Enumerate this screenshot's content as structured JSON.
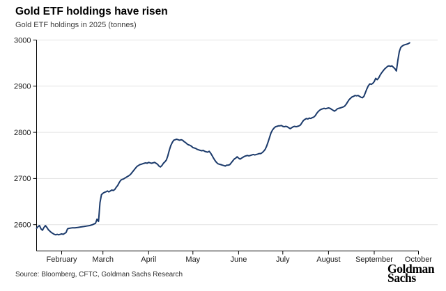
{
  "header": {
    "title": "Gold ETF holdings have risen",
    "subtitle": "Gold ETF holdings in 2025 (tonnes)"
  },
  "footer": {
    "source": "Source: Bloomberg, CFTC, Goldman Sachs Research",
    "logo_line1": "Goldman",
    "logo_line2": "Sachs"
  },
  "chart_data": {
    "type": "line",
    "title": "Gold ETF holdings have risen",
    "subtitle": "Gold ETF holdings in 2025 (tonnes)",
    "series_name": "Gold ETF holdings (tonnes)",
    "x_unit": "days since 2025-01-15",
    "x_days_total": 259,
    "x_axis_months": [
      {
        "label": "February",
        "day": 17
      },
      {
        "label": "March",
        "day": 45
      },
      {
        "label": "April",
        "day": 76
      },
      {
        "label": "May",
        "day": 106
      },
      {
        "label": "June",
        "day": 137
      },
      {
        "label": "July",
        "day": 167
      },
      {
        "label": "August",
        "day": 198
      },
      {
        "label": "September",
        "day": 229
      },
      {
        "label": "October",
        "day": 259
      }
    ],
    "y_ticks": [
      2600,
      2700,
      2800,
      2900,
      3000
    ],
    "y_axis_range": [
      2543,
      3000
    ],
    "grid": "horizontal",
    "legend": "none",
    "line_color": "#1b3a6b",
    "grid_color": "#e3e3e3",
    "axis_color": "#000000",
    "label_color": "#1a1a1a",
    "points": [
      [
        0,
        2592
      ],
      [
        1,
        2596
      ],
      [
        2,
        2598
      ],
      [
        3,
        2591
      ],
      [
        4,
        2588
      ],
      [
        5,
        2594
      ],
      [
        6,
        2598
      ],
      [
        7,
        2594
      ],
      [
        8,
        2589
      ],
      [
        9,
        2586
      ],
      [
        10,
        2583
      ],
      [
        11,
        2581
      ],
      [
        12,
        2579
      ],
      [
        13,
        2578
      ],
      [
        14,
        2579
      ],
      [
        15,
        2578
      ],
      [
        16,
        2579
      ],
      [
        17,
        2580
      ],
      [
        18,
        2579
      ],
      [
        19,
        2581
      ],
      [
        20,
        2583
      ],
      [
        21,
        2591
      ],
      [
        22,
        2592
      ],
      [
        24,
        2593
      ],
      [
        26,
        2593
      ],
      [
        28,
        2594
      ],
      [
        30,
        2595
      ],
      [
        32,
        2596
      ],
      [
        34,
        2597
      ],
      [
        36,
        2598
      ],
      [
        38,
        2600
      ],
      [
        40,
        2603
      ],
      [
        41,
        2612
      ],
      [
        42,
        2607
      ],
      [
        43,
        2648
      ],
      [
        44,
        2665
      ],
      [
        45,
        2668
      ],
      [
        46,
        2670
      ],
      [
        47,
        2671
      ],
      [
        48,
        2673
      ],
      [
        49,
        2671
      ],
      [
        50,
        2673
      ],
      [
        51,
        2675
      ],
      [
        52,
        2674
      ],
      [
        53,
        2676
      ],
      [
        54,
        2681
      ],
      [
        55,
        2685
      ],
      [
        56,
        2691
      ],
      [
        57,
        2696
      ],
      [
        58,
        2698
      ],
      [
        59,
        2699
      ],
      [
        60,
        2701
      ],
      [
        61,
        2703
      ],
      [
        62,
        2705
      ],
      [
        63,
        2707
      ],
      [
        64,
        2710
      ],
      [
        65,
        2714
      ],
      [
        66,
        2718
      ],
      [
        67,
        2722
      ],
      [
        68,
        2726
      ],
      [
        69,
        2728
      ],
      [
        70,
        2730
      ],
      [
        71,
        2731
      ],
      [
        72,
        2732
      ],
      [
        73,
        2733
      ],
      [
        74,
        2734
      ],
      [
        75,
        2733
      ],
      [
        76,
        2735
      ],
      [
        77,
        2734
      ],
      [
        78,
        2733
      ],
      [
        79,
        2734
      ],
      [
        80,
        2735
      ],
      [
        81,
        2733
      ],
      [
        82,
        2731
      ],
      [
        83,
        2727
      ],
      [
        84,
        2725
      ],
      [
        85,
        2728
      ],
      [
        86,
        2733
      ],
      [
        87,
        2736
      ],
      [
        88,
        2740
      ],
      [
        89,
        2749
      ],
      [
        90,
        2761
      ],
      [
        91,
        2771
      ],
      [
        92,
        2778
      ],
      [
        93,
        2783
      ],
      [
        94,
        2784
      ],
      [
        95,
        2785
      ],
      [
        96,
        2784
      ],
      [
        97,
        2783
      ],
      [
        98,
        2784
      ],
      [
        99,
        2783
      ],
      [
        100,
        2780
      ],
      [
        101,
        2778
      ],
      [
        102,
        2775
      ],
      [
        103,
        2773
      ],
      [
        104,
        2772
      ],
      [
        105,
        2770
      ],
      [
        106,
        2767
      ],
      [
        107,
        2766
      ],
      [
        108,
        2765
      ],
      [
        109,
        2763
      ],
      [
        110,
        2762
      ],
      [
        111,
        2761
      ],
      [
        112,
        2760
      ],
      [
        113,
        2761
      ],
      [
        114,
        2759
      ],
      [
        115,
        2758
      ],
      [
        116,
        2757
      ],
      [
        117,
        2759
      ],
      [
        118,
        2755
      ],
      [
        119,
        2750
      ],
      [
        120,
        2744
      ],
      [
        121,
        2739
      ],
      [
        122,
        2735
      ],
      [
        123,
        2732
      ],
      [
        124,
        2731
      ],
      [
        125,
        2730
      ],
      [
        126,
        2729
      ],
      [
        127,
        2728
      ],
      [
        128,
        2727
      ],
      [
        129,
        2729
      ],
      [
        130,
        2729
      ],
      [
        131,
        2730
      ],
      [
        132,
        2734
      ],
      [
        133,
        2738
      ],
      [
        134,
        2742
      ],
      [
        135,
        2744
      ],
      [
        136,
        2747
      ],
      [
        137,
        2744
      ],
      [
        138,
        2742
      ],
      [
        139,
        2744
      ],
      [
        140,
        2746
      ],
      [
        141,
        2748
      ],
      [
        142,
        2749
      ],
      [
        143,
        2750
      ],
      [
        144,
        2749
      ],
      [
        145,
        2750
      ],
      [
        146,
        2751
      ],
      [
        147,
        2752
      ],
      [
        148,
        2751
      ],
      [
        149,
        2752
      ],
      [
        150,
        2753
      ],
      [
        151,
        2754
      ],
      [
        152,
        2754
      ],
      [
        153,
        2756
      ],
      [
        154,
        2759
      ],
      [
        155,
        2763
      ],
      [
        156,
        2770
      ],
      [
        157,
        2779
      ],
      [
        158,
        2789
      ],
      [
        159,
        2799
      ],
      [
        160,
        2805
      ],
      [
        161,
        2809
      ],
      [
        162,
        2812
      ],
      [
        163,
        2813
      ],
      [
        164,
        2814
      ],
      [
        165,
        2814
      ],
      [
        166,
        2815
      ],
      [
        167,
        2813
      ],
      [
        168,
        2812
      ],
      [
        169,
        2813
      ],
      [
        170,
        2812
      ],
      [
        171,
        2810
      ],
      [
        172,
        2808
      ],
      [
        173,
        2810
      ],
      [
        174,
        2812
      ],
      [
        175,
        2813
      ],
      [
        176,
        2812
      ],
      [
        177,
        2813
      ],
      [
        178,
        2814
      ],
      [
        179,
        2816
      ],
      [
        180,
        2821
      ],
      [
        181,
        2826
      ],
      [
        182,
        2828
      ],
      [
        183,
        2830
      ],
      [
        184,
        2829
      ],
      [
        185,
        2831
      ],
      [
        186,
        2830
      ],
      [
        187,
        2832
      ],
      [
        188,
        2833
      ],
      [
        189,
        2836
      ],
      [
        190,
        2841
      ],
      [
        191,
        2845
      ],
      [
        192,
        2848
      ],
      [
        193,
        2850
      ],
      [
        194,
        2851
      ],
      [
        195,
        2852
      ],
      [
        196,
        2851
      ],
      [
        197,
        2852
      ],
      [
        198,
        2853
      ],
      [
        199,
        2852
      ],
      [
        200,
        2850
      ],
      [
        201,
        2848
      ],
      [
        202,
        2846
      ],
      [
        203,
        2848
      ],
      [
        204,
        2851
      ],
      [
        205,
        2852
      ],
      [
        206,
        2853
      ],
      [
        207,
        2854
      ],
      [
        208,
        2855
      ],
      [
        209,
        2857
      ],
      [
        210,
        2861
      ],
      [
        211,
        2866
      ],
      [
        212,
        2871
      ],
      [
        213,
        2874
      ],
      [
        214,
        2877
      ],
      [
        215,
        2878
      ],
      [
        216,
        2880
      ],
      [
        217,
        2879
      ],
      [
        218,
        2880
      ],
      [
        219,
        2878
      ],
      [
        220,
        2876
      ],
      [
        221,
        2875
      ],
      [
        222,
        2878
      ],
      [
        223,
        2886
      ],
      [
        224,
        2894
      ],
      [
        225,
        2901
      ],
      [
        226,
        2905
      ],
      [
        227,
        2904
      ],
      [
        228,
        2906
      ],
      [
        229,
        2910
      ],
      [
        230,
        2917
      ],
      [
        231,
        2914
      ],
      [
        232,
        2918
      ],
      [
        233,
        2924
      ],
      [
        234,
        2929
      ],
      [
        235,
        2933
      ],
      [
        236,
        2937
      ],
      [
        237,
        2940
      ],
      [
        238,
        2943
      ],
      [
        239,
        2944
      ],
      [
        240,
        2943
      ],
      [
        241,
        2944
      ],
      [
        242,
        2941
      ],
      [
        243,
        2938
      ],
      [
        244,
        2933
      ],
      [
        245,
        2956
      ],
      [
        246,
        2975
      ],
      [
        247,
        2984
      ],
      [
        248,
        2987
      ],
      [
        249,
        2989
      ],
      [
        250,
        2990
      ],
      [
        251,
        2991
      ],
      [
        252,
        2992
      ],
      [
        253,
        2994
      ]
    ]
  }
}
